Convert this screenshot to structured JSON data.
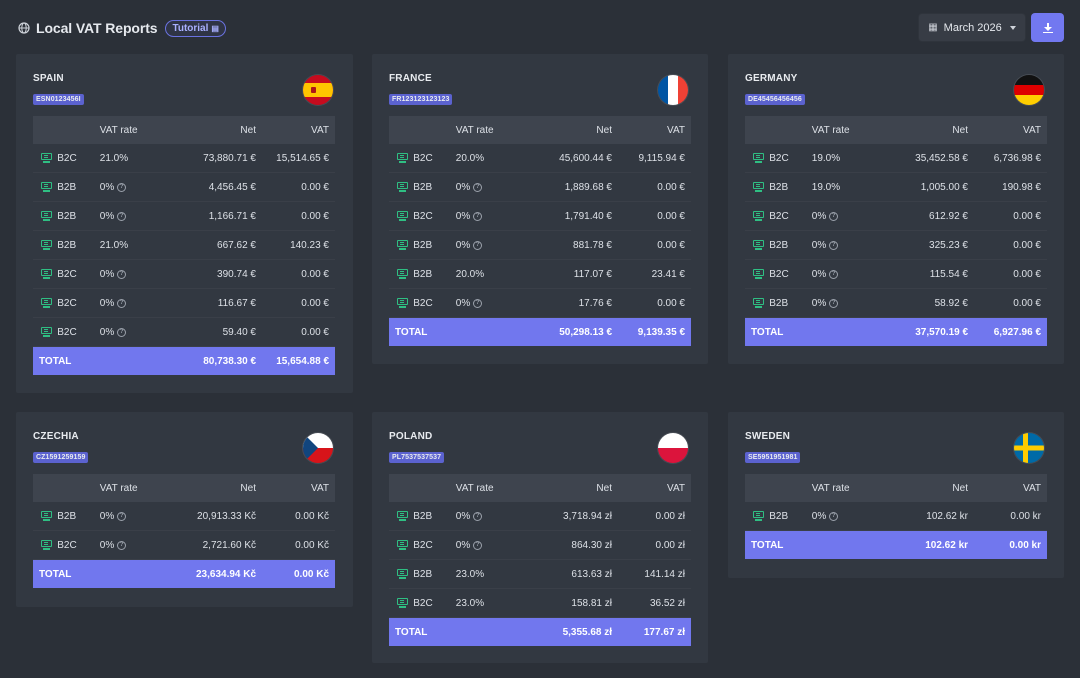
{
  "header": {
    "title": "Local VAT Reports",
    "tutorial_label": "Tutorial",
    "globe_icon": "globe-icon",
    "month_label": "March 2026",
    "download_icon": "download-icon"
  },
  "table_headers": {
    "rate": "VAT rate",
    "net": "Net",
    "vat": "VAT"
  },
  "total_label": "TOTAL",
  "colors": {
    "accent": "#7177ee",
    "card": "#323841",
    "bg": "#2b3038",
    "icon_green": "#2fbf83"
  },
  "countries": [
    {
      "name": "SPAIN",
      "vat_id": "ESN0123456I",
      "flag": "spain-flag-icon",
      "rows": [
        {
          "type": "B2C",
          "rate": "21.0%",
          "help": false,
          "net": "73,880.71 €",
          "vat": "15,514.65 €"
        },
        {
          "type": "B2B",
          "rate": "0%",
          "help": true,
          "net": "4,456.45 €",
          "vat": "0.00 €"
        },
        {
          "type": "B2B",
          "rate": "0%",
          "help": true,
          "net": "1,166.71 €",
          "vat": "0.00 €"
        },
        {
          "type": "B2B",
          "rate": "21.0%",
          "help": false,
          "net": "667.62 €",
          "vat": "140.23 €"
        },
        {
          "type": "B2C",
          "rate": "0%",
          "help": true,
          "net": "390.74 €",
          "vat": "0.00 €"
        },
        {
          "type": "B2C",
          "rate": "0%",
          "help": true,
          "net": "116.67 €",
          "vat": "0.00 €"
        },
        {
          "type": "B2C",
          "rate": "0%",
          "help": true,
          "net": "59.40 €",
          "vat": "0.00 €"
        }
      ],
      "total": {
        "net": "80,738.30 €",
        "vat": "15,654.88 €"
      }
    },
    {
      "name": "FRANCE",
      "vat_id": "FR123123123123",
      "flag": "france-flag-icon",
      "rows": [
        {
          "type": "B2C",
          "rate": "20.0%",
          "help": false,
          "net": "45,600.44 €",
          "vat": "9,115.94 €"
        },
        {
          "type": "B2B",
          "rate": "0%",
          "help": true,
          "net": "1,889.68 €",
          "vat": "0.00 €"
        },
        {
          "type": "B2C",
          "rate": "0%",
          "help": true,
          "net": "1,791.40 €",
          "vat": "0.00 €"
        },
        {
          "type": "B2B",
          "rate": "0%",
          "help": true,
          "net": "881.78 €",
          "vat": "0.00 €"
        },
        {
          "type": "B2B",
          "rate": "20.0%",
          "help": false,
          "net": "117.07 €",
          "vat": "23.41 €"
        },
        {
          "type": "B2C",
          "rate": "0%",
          "help": true,
          "net": "17.76 €",
          "vat": "0.00 €"
        }
      ],
      "total": {
        "net": "50,298.13 €",
        "vat": "9,139.35 €"
      }
    },
    {
      "name": "GERMANY",
      "vat_id": "DE45456456456",
      "flag": "germany-flag-icon",
      "rows": [
        {
          "type": "B2C",
          "rate": "19.0%",
          "help": false,
          "net": "35,452.58 €",
          "vat": "6,736.98 €"
        },
        {
          "type": "B2B",
          "rate": "19.0%",
          "help": false,
          "net": "1,005.00 €",
          "vat": "190.98 €"
        },
        {
          "type": "B2C",
          "rate": "0%",
          "help": true,
          "net": "612.92 €",
          "vat": "0.00 €"
        },
        {
          "type": "B2B",
          "rate": "0%",
          "help": true,
          "net": "325.23 €",
          "vat": "0.00 €"
        },
        {
          "type": "B2C",
          "rate": "0%",
          "help": true,
          "net": "115.54 €",
          "vat": "0.00 €"
        },
        {
          "type": "B2B",
          "rate": "0%",
          "help": true,
          "net": "58.92 €",
          "vat": "0.00 €"
        }
      ],
      "total": {
        "net": "37,570.19 €",
        "vat": "6,927.96 €"
      }
    },
    {
      "name": "CZECHIA",
      "vat_id": "CZ1591259159",
      "flag": "czechia-flag-icon",
      "rows": [
        {
          "type": "B2B",
          "rate": "0%",
          "help": true,
          "net": "20,913.33 Kč",
          "vat": "0.00 Kč"
        },
        {
          "type": "B2C",
          "rate": "0%",
          "help": true,
          "net": "2,721.60 Kč",
          "vat": "0.00 Kč"
        }
      ],
      "total": {
        "net": "23,634.94 Kč",
        "vat": "0.00 Kč"
      }
    },
    {
      "name": "POLAND",
      "vat_id": "PL7537537537",
      "flag": "poland-flag-icon",
      "rows": [
        {
          "type": "B2B",
          "rate": "0%",
          "help": true,
          "net": "3,718.94 zł",
          "vat": "0.00 zł"
        },
        {
          "type": "B2C",
          "rate": "0%",
          "help": true,
          "net": "864.30 zł",
          "vat": "0.00 zł"
        },
        {
          "type": "B2B",
          "rate": "23.0%",
          "help": false,
          "net": "613.63 zł",
          "vat": "141.14 zł"
        },
        {
          "type": "B2C",
          "rate": "23.0%",
          "help": false,
          "net": "158.81 zł",
          "vat": "36.52 zł"
        }
      ],
      "total": {
        "net": "5,355.68 zł",
        "vat": "177.67 zł"
      }
    },
    {
      "name": "SWEDEN",
      "vat_id": "SE5951951981",
      "flag": "sweden-flag-icon",
      "rows": [
        {
          "type": "B2B",
          "rate": "0%",
          "help": true,
          "net": "102.62 kr",
          "vat": "0.00 kr"
        }
      ],
      "total": {
        "net": "102.62 kr",
        "vat": "0.00 kr"
      }
    }
  ]
}
